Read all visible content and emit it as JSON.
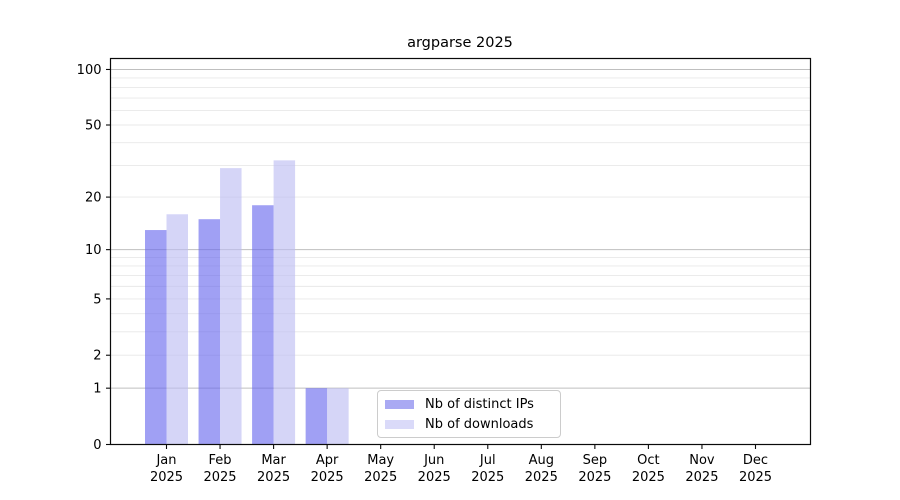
{
  "title": "argparse 2025",
  "legend": {
    "position": "lower center",
    "items": [
      {
        "label": "Nb of distinct IPs",
        "color": "#a9a9f3"
      },
      {
        "label": "Nb of downloads",
        "color": "#dadaf9"
      }
    ]
  },
  "chart_data": {
    "type": "bar",
    "title": "argparse 2025",
    "categories": [
      "Jan 2025",
      "Feb 2025",
      "Mar 2025",
      "Apr 2025",
      "May 2025",
      "Jun 2025",
      "Jul 2025",
      "Aug 2025",
      "Sep 2025",
      "Oct 2025",
      "Nov 2025",
      "Dec 2025"
    ],
    "x_tick_top": [
      "Jan",
      "Feb",
      "Mar",
      "Apr",
      "May",
      "Jun",
      "Jul",
      "Aug",
      "Sep",
      "Oct",
      "Nov",
      "Dec"
    ],
    "x_tick_bottom": "2025",
    "series": [
      {
        "name": "Nb of distinct IPs",
        "values": [
          13,
          15,
          18,
          1,
          0,
          0,
          0,
          0,
          0,
          0,
          0,
          0
        ],
        "bar_color": "rgba(102,102,238,0.62)",
        "legend_color": "#a9a9f3"
      },
      {
        "name": "Nb of downloads",
        "values": [
          16,
          29,
          32,
          1,
          0,
          0,
          0,
          0,
          0,
          0,
          0,
          0
        ],
        "bar_color": "rgba(187,187,242,0.62)",
        "legend_color": "#dadaf9"
      }
    ],
    "xlabel": "",
    "ylabel": "",
    "yscale": "log1p",
    "ylim": [
      0,
      114.6
    ],
    "y_ticks": [
      0,
      1,
      2,
      5,
      10,
      20,
      50,
      100
    ],
    "y_major_gridlines": [
      1,
      10,
      100
    ],
    "y_minor_gridlines": [
      2,
      3,
      4,
      5,
      6,
      7,
      8,
      9,
      20,
      30,
      40,
      50,
      60,
      70,
      80,
      90
    ],
    "grid": true,
    "legend_position": "lower center",
    "colors": {
      "major_grid": "#bfbfbf",
      "minor_grid": "#e8e8e8",
      "spine": "#0a0a0a",
      "tick_text": "#000000"
    }
  }
}
